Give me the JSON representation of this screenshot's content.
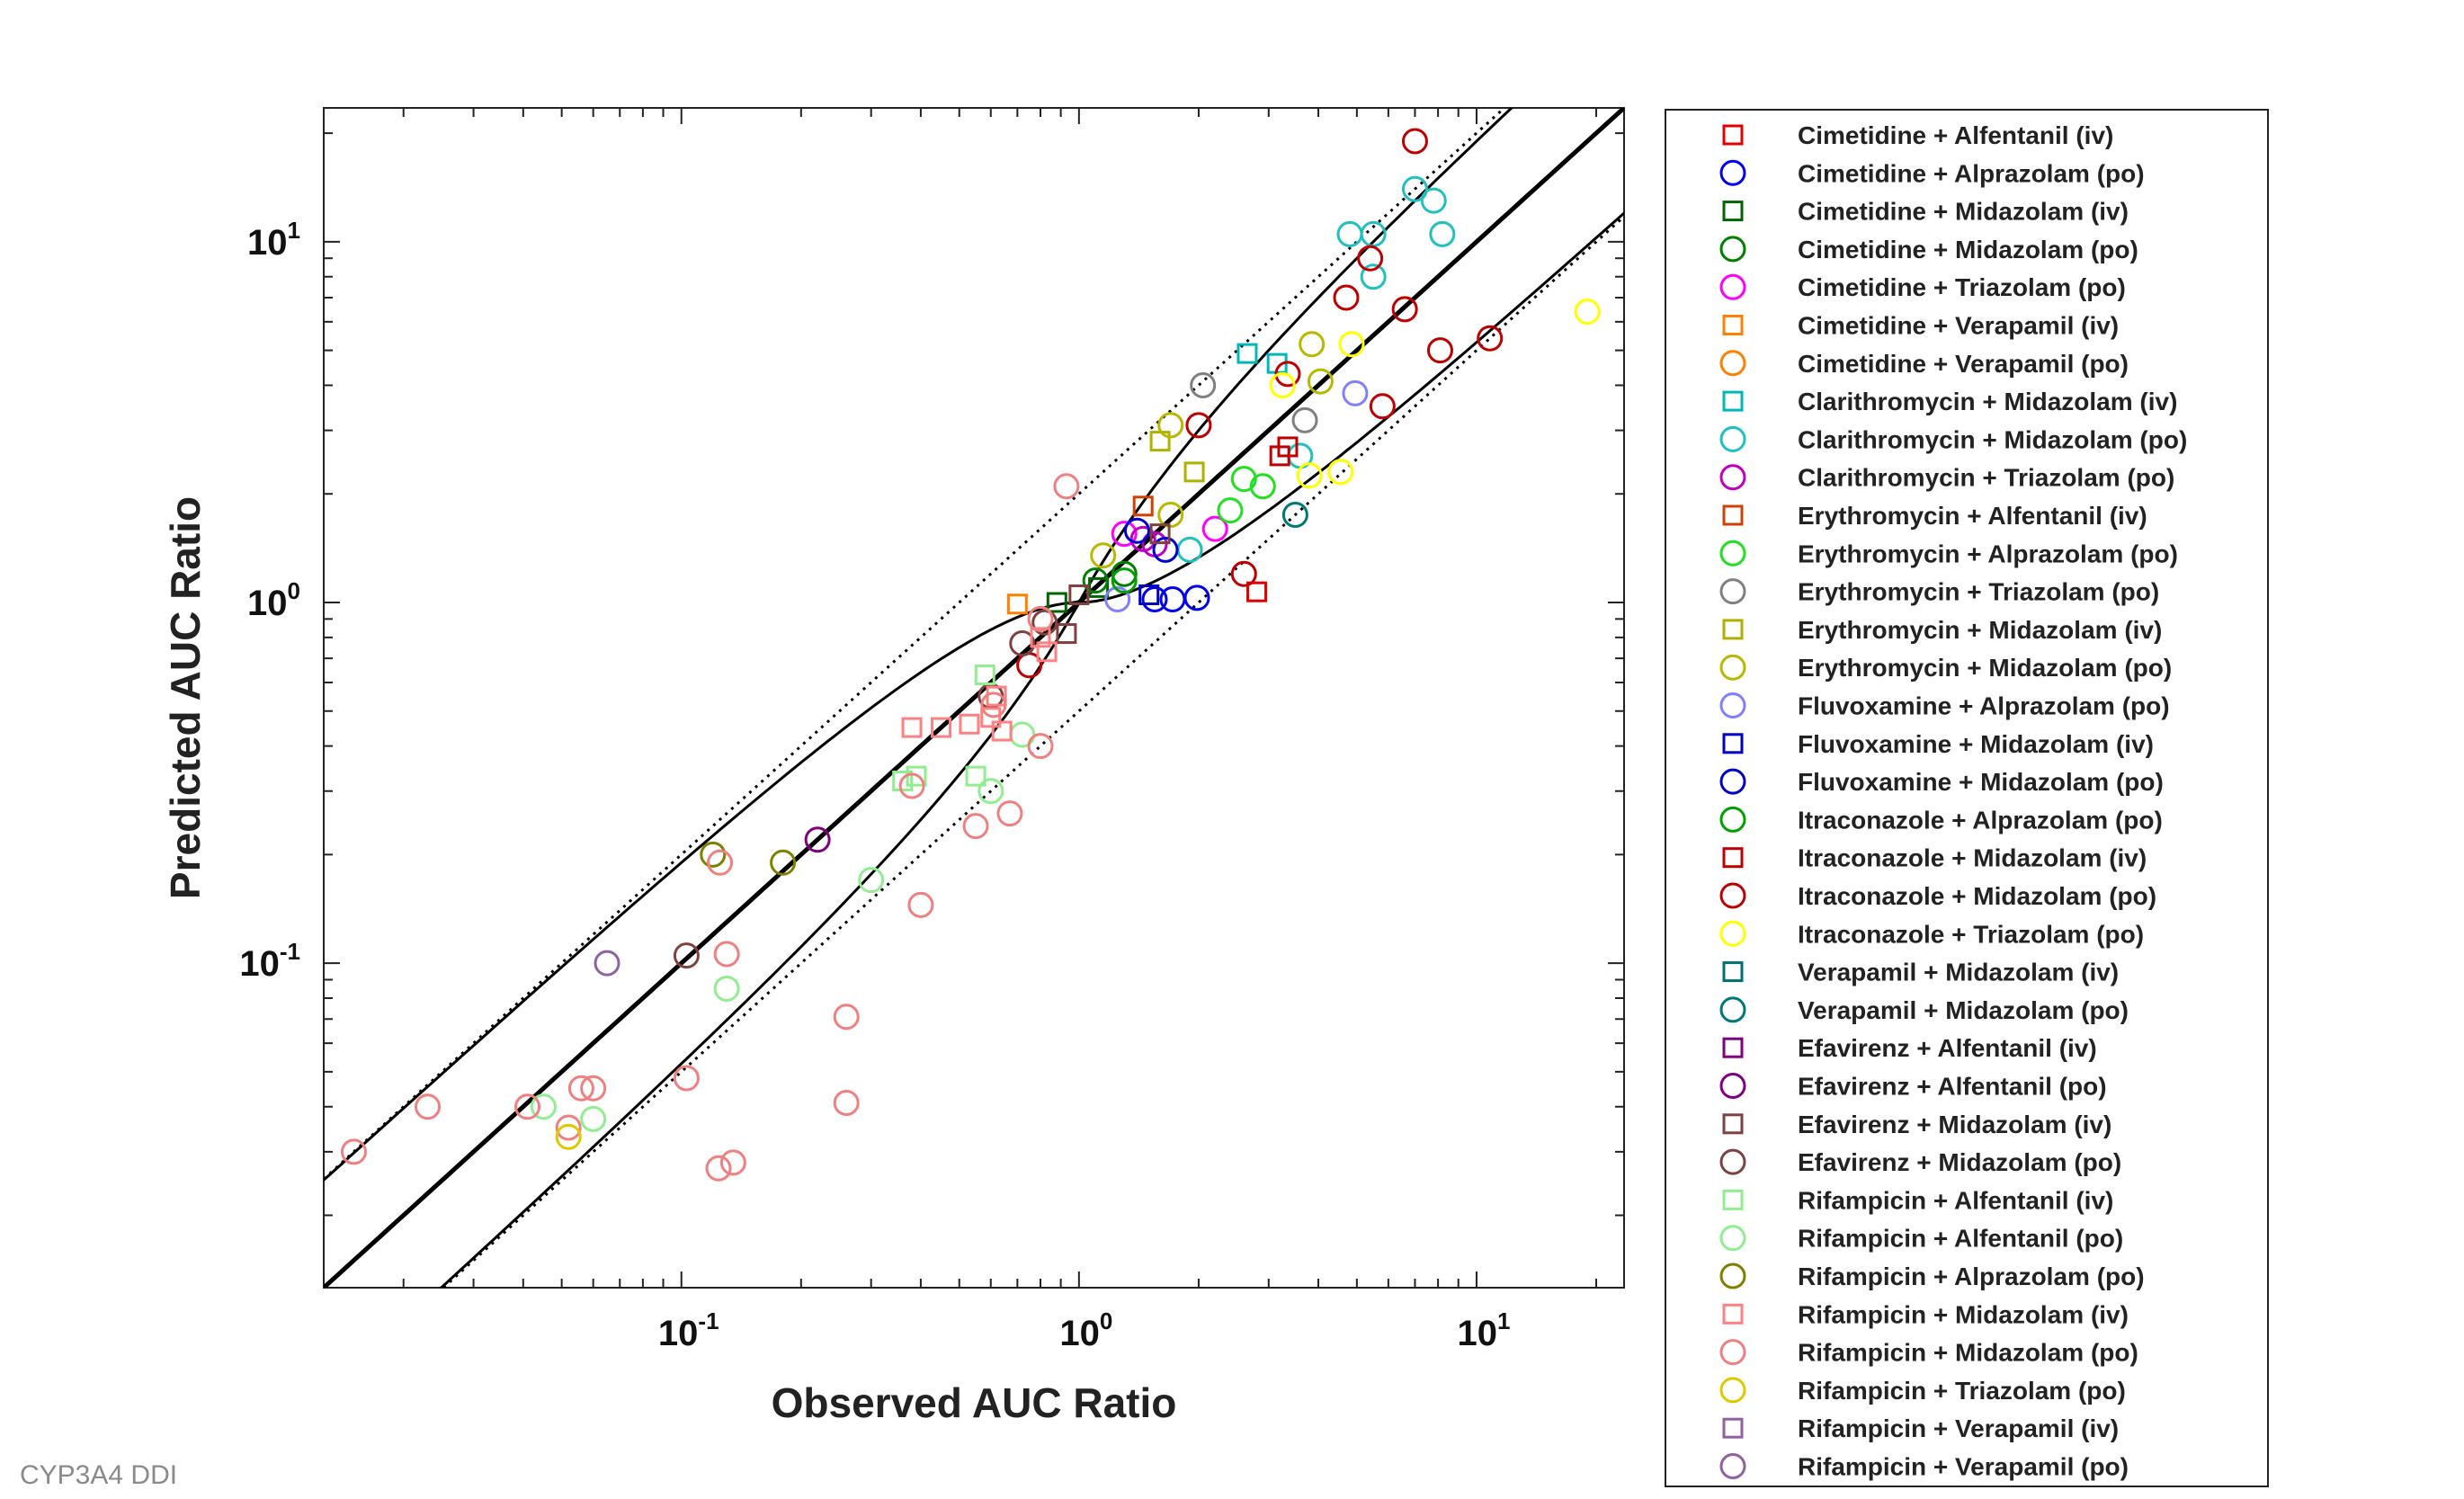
{
  "watermark": "CYP3A4 DDI",
  "chart_data": {
    "type": "scatter",
    "xlabel": "Observed AUC Ratio",
    "ylabel": "Predicted AUC Ratio",
    "xscale": "log",
    "yscale": "log",
    "xlim": [
      0.0126,
      23.5
    ],
    "ylim": [
      0.0126,
      23.5
    ],
    "x_ticks": [
      {
        "value": 0.1,
        "base": "10",
        "exp": "-1"
      },
      {
        "value": 1,
        "base": "10",
        "exp": "0"
      },
      {
        "value": 10,
        "base": "10",
        "exp": "1"
      }
    ],
    "y_ticks": [
      {
        "value": 0.1,
        "base": "10",
        "exp": "-1"
      },
      {
        "value": 1,
        "base": "10",
        "exp": "0"
      },
      {
        "value": 10,
        "base": "10",
        "exp": "1"
      }
    ],
    "grid": false,
    "legend_position": "outside-right",
    "reference_lines": [
      {
        "name": "line-of-identity",
        "factor": 1,
        "style": "solid-thick"
      },
      {
        "name": "upper-2fold",
        "factor": 2,
        "style": "dotted"
      },
      {
        "name": "lower-2fold",
        "factor": 0.5,
        "style": "dotted"
      }
    ],
    "guest_limits": {
      "delta": 1,
      "style": "solid"
    },
    "series": [
      {
        "name": "Cimetidine + Alfentanil (iv)",
        "marker": "square",
        "color": "#e00000",
        "points": [
          [
            2.8,
            1.07
          ]
        ]
      },
      {
        "name": "Cimetidine + Alprazolam (po)",
        "marker": "circle",
        "color": "#0000ee",
        "points": [
          [
            1.55,
            1.02
          ],
          [
            1.72,
            1.02
          ],
          [
            1.98,
            1.03
          ]
        ]
      },
      {
        "name": "Cimetidine + Midazolam (iv)",
        "marker": "square",
        "color": "#006400",
        "points": [
          [
            0.88,
            1.0
          ],
          [
            1.12,
            1.1
          ]
        ]
      },
      {
        "name": "Cimetidine + Midazolam (po)",
        "marker": "circle",
        "color": "#008000",
        "points": [
          [
            1.1,
            1.15
          ],
          [
            1.3,
            1.2
          ]
        ]
      },
      {
        "name": "Cimetidine + Triazolam (po)",
        "marker": "circle",
        "color": "#ff00ff",
        "points": [
          [
            1.3,
            1.55
          ],
          [
            2.2,
            1.6
          ]
        ]
      },
      {
        "name": "Cimetidine + Verapamil (iv)",
        "marker": "square",
        "color": "#ff8000",
        "points": [
          [
            0.7,
            0.99
          ]
        ]
      },
      {
        "name": "Cimetidine + Verapamil (po)",
        "marker": "circle",
        "color": "#ff8000",
        "points": []
      },
      {
        "name": "Clarithromycin + Midazolam (iv)",
        "marker": "square",
        "color": "#00b8b8",
        "points": [
          [
            2.65,
            4.9
          ],
          [
            3.15,
            4.6
          ]
        ]
      },
      {
        "name": "Clarithromycin + Midazolam (po)",
        "marker": "circle",
        "color": "#20c0c0",
        "points": [
          [
            4.8,
            10.5
          ],
          [
            5.5,
            10.5
          ],
          [
            7.0,
            14.0
          ],
          [
            7.8,
            13.0
          ],
          [
            8.2,
            10.5
          ],
          [
            5.5,
            8.0
          ],
          [
            3.6,
            2.55
          ],
          [
            1.9,
            1.4
          ]
        ]
      },
      {
        "name": "Clarithromycin + Triazolam (po)",
        "marker": "circle",
        "color": "#c000c0",
        "points": [
          [
            1.45,
            1.5
          ],
          [
            1.55,
            1.45
          ]
        ]
      },
      {
        "name": "Erythromycin + Alfentanil (iv)",
        "marker": "square",
        "color": "#d04000",
        "points": [
          [
            1.45,
            1.85
          ]
        ]
      },
      {
        "name": "Erythromycin + Alprazolam (po)",
        "marker": "circle",
        "color": "#20e020",
        "points": [
          [
            2.4,
            1.8
          ],
          [
            2.6,
            2.2
          ],
          [
            2.9,
            2.1
          ]
        ]
      },
      {
        "name": "Erythromycin + Triazolam (po)",
        "marker": "circle",
        "color": "#808080",
        "points": [
          [
            2.05,
            4.0
          ],
          [
            3.7,
            3.2
          ]
        ]
      },
      {
        "name": "Erythromycin + Midazolam (iv)",
        "marker": "square",
        "color": "#b0b000",
        "points": [
          [
            1.6,
            2.8
          ],
          [
            1.95,
            2.3
          ]
        ]
      },
      {
        "name": "Erythromycin + Midazolam (po)",
        "marker": "circle",
        "color": "#b8b800",
        "points": [
          [
            1.7,
            3.1
          ],
          [
            3.85,
            5.2
          ],
          [
            4.05,
            4.1
          ],
          [
            1.7,
            1.75
          ],
          [
            1.15,
            1.35
          ]
        ]
      },
      {
        "name": "Fluvoxamine + Alprazolam (po)",
        "marker": "circle",
        "color": "#8080ff",
        "points": [
          [
            1.25,
            1.02
          ],
          [
            4.95,
            3.8
          ]
        ]
      },
      {
        "name": "Fluvoxamine + Midazolam (iv)",
        "marker": "square",
        "color": "#0000c0",
        "points": [
          [
            1.5,
            1.05
          ]
        ]
      },
      {
        "name": "Fluvoxamine + Midazolam (po)",
        "marker": "circle",
        "color": "#0000cc",
        "points": [
          [
            1.65,
            1.4
          ],
          [
            1.4,
            1.58
          ]
        ]
      },
      {
        "name": "Itraconazole + Alprazolam (po)",
        "marker": "circle",
        "color": "#00a000",
        "points": [
          [
            1.3,
            1.15
          ]
        ]
      },
      {
        "name": "Itraconazole + Midazolam (iv)",
        "marker": "square",
        "color": "#c00000",
        "points": [
          [
            3.35,
            2.7
          ],
          [
            3.2,
            2.55
          ]
        ]
      },
      {
        "name": "Itraconazole + Midazolam (po)",
        "marker": "circle",
        "color": "#c00000",
        "points": [
          [
            7.0,
            19.0
          ],
          [
            5.4,
            9.0
          ],
          [
            4.7,
            7.0
          ],
          [
            6.6,
            6.5
          ],
          [
            8.1,
            5.0
          ],
          [
            10.8,
            5.4
          ],
          [
            3.35,
            4.3
          ],
          [
            5.8,
            3.5
          ],
          [
            2.0,
            3.1
          ],
          [
            2.6,
            1.2
          ],
          [
            0.75,
            0.67
          ]
        ]
      },
      {
        "name": "Itraconazole + Triazolam (po)",
        "marker": "circle",
        "color": "#ffff00",
        "points": [
          [
            19.0,
            6.4
          ],
          [
            4.85,
            5.2
          ],
          [
            3.25,
            4.0
          ],
          [
            3.8,
            2.25
          ],
          [
            4.55,
            2.3
          ]
        ]
      },
      {
        "name": "Verapamil + Midazolam (iv)",
        "marker": "square",
        "color": "#007070",
        "points": []
      },
      {
        "name": "Verapamil + Midazolam (po)",
        "marker": "circle",
        "color": "#007878",
        "points": [
          [
            3.5,
            1.75
          ]
        ]
      },
      {
        "name": "Efavirenz + Alfentanil (iv)",
        "marker": "square",
        "color": "#800080",
        "points": []
      },
      {
        "name": "Efavirenz + Alfentanil (po)",
        "marker": "circle",
        "color": "#800080",
        "points": [
          [
            0.22,
            0.22
          ]
        ]
      },
      {
        "name": "Efavirenz + Midazolam (iv)",
        "marker": "square",
        "color": "#804040",
        "points": [
          [
            0.93,
            0.82
          ],
          [
            1.0,
            1.05
          ],
          [
            1.6,
            1.55
          ]
        ]
      },
      {
        "name": "Efavirenz + Midazolam (po)",
        "marker": "circle",
        "color": "#804040",
        "points": [
          [
            0.103,
            0.105
          ],
          [
            0.6,
            0.55
          ],
          [
            0.72,
            0.77
          ],
          [
            0.82,
            0.88
          ]
        ]
      },
      {
        "name": "Rifampicin + Alfentanil (iv)",
        "marker": "square",
        "color": "#90ee90",
        "points": [
          [
            0.39,
            0.33
          ],
          [
            0.58,
            0.63
          ],
          [
            0.55,
            0.33
          ],
          [
            0.36,
            0.32
          ]
        ]
      },
      {
        "name": "Rifampicin + Alfentanil (po)",
        "marker": "circle",
        "color": "#90ee90",
        "points": [
          [
            0.045,
            0.04
          ],
          [
            0.06,
            0.037
          ],
          [
            0.13,
            0.085
          ],
          [
            0.3,
            0.17
          ],
          [
            0.6,
            0.3
          ],
          [
            0.72,
            0.43
          ]
        ]
      },
      {
        "name": "Rifampicin + Alprazolam (po)",
        "marker": "circle",
        "color": "#808000",
        "points": [
          [
            0.18,
            0.19
          ],
          [
            0.12,
            0.2
          ]
        ]
      },
      {
        "name": "Rifampicin + Midazolam (iv)",
        "marker": "square",
        "color": "#ff8080",
        "points": [
          [
            0.38,
            0.45
          ],
          [
            0.45,
            0.45
          ],
          [
            0.53,
            0.46
          ],
          [
            0.6,
            0.48
          ],
          [
            0.64,
            0.44
          ],
          [
            0.62,
            0.55
          ],
          [
            0.8,
            0.8
          ],
          [
            0.83,
            0.73
          ]
        ]
      },
      {
        "name": "Rifampicin + Midazolam (po)",
        "marker": "circle",
        "color": "#f08080",
        "points": [
          [
            0.015,
            0.03
          ],
          [
            0.023,
            0.04
          ],
          [
            0.041,
            0.04
          ],
          [
            0.052,
            0.035
          ],
          [
            0.056,
            0.045
          ],
          [
            0.06,
            0.045
          ],
          [
            0.103,
            0.048
          ],
          [
            0.124,
            0.027
          ],
          [
            0.135,
            0.028
          ],
          [
            0.125,
            0.19
          ],
          [
            0.13,
            0.106
          ],
          [
            0.26,
            0.071
          ],
          [
            0.26,
            0.041
          ],
          [
            0.38,
            0.31
          ],
          [
            0.4,
            0.145
          ],
          [
            0.55,
            0.24
          ],
          [
            0.67,
            0.26
          ],
          [
            0.8,
            0.4
          ],
          [
            0.93,
            2.1
          ],
          [
            0.61,
            0.52
          ],
          [
            0.8,
            0.9
          ]
        ]
      },
      {
        "name": "Rifampicin + Triazolam (po)",
        "marker": "circle",
        "color": "#e0c800",
        "points": [
          [
            0.052,
            0.033
          ]
        ]
      },
      {
        "name": "Rifampicin + Verapamil (iv)",
        "marker": "square",
        "color": "#9060a0",
        "points": []
      },
      {
        "name": "Rifampicin + Verapamil (po)",
        "marker": "circle",
        "color": "#9060a0",
        "points": [
          [
            0.065,
            0.1
          ]
        ]
      }
    ]
  }
}
